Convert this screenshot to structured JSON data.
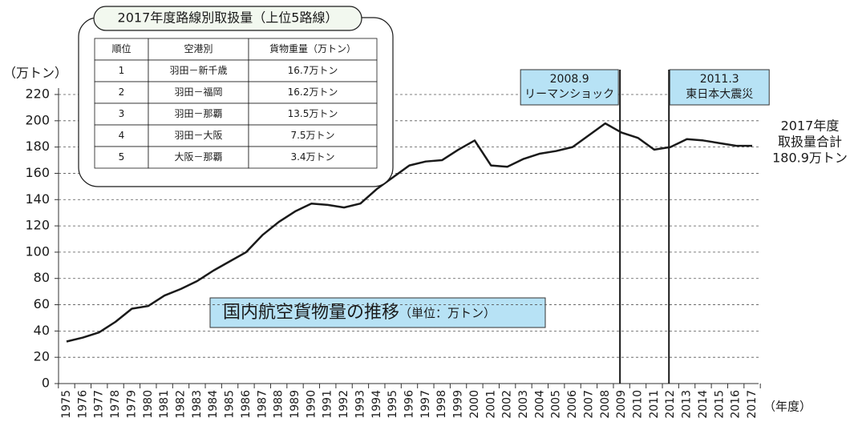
{
  "chart_data": {
    "type": "line",
    "title": "国内航空貨物量の推移",
    "subtitle": "（単位：万トン）",
    "y_label": "（万トン）",
    "x_label": "（年度）",
    "categories": [
      "1975",
      "1976",
      "1977",
      "1978",
      "1979",
      "1980",
      "1981",
      "1982",
      "1983",
      "1984",
      "1985",
      "1986",
      "1987",
      "1988",
      "1989",
      "1990",
      "1991",
      "1992",
      "1993",
      "1994",
      "1995",
      "1996",
      "1997",
      "1998",
      "1999",
      "2000",
      "2001",
      "2002",
      "2003",
      "2004",
      "2005",
      "2006",
      "2007",
      "2008",
      "2009",
      "2010",
      "2011",
      "2012",
      "2013",
      "2014",
      "2015",
      "2016",
      "2017"
    ],
    "series": [
      {
        "color": "#1a1a1a",
        "values": [
          32,
          35,
          39,
          47,
          57,
          59,
          67,
          72,
          78,
          86,
          93,
          100,
          113,
          123,
          131,
          137,
          136,
          134,
          137,
          148,
          157,
          166,
          169,
          170,
          178,
          185,
          166,
          165,
          171,
          175,
          177,
          180,
          189,
          198,
          191,
          187,
          178,
          180,
          186,
          185,
          183,
          181,
          180.9
        ]
      }
    ],
    "ylim": [
      0,
      220
    ],
    "yticks": [
      0,
      20,
      40,
      60,
      80,
      100,
      120,
      140,
      160,
      180,
      200,
      220
    ],
    "grid": true,
    "events": [
      {
        "x": "2009",
        "lines": [
          "2008.9",
          "リーマンショック"
        ]
      },
      {
        "x": "2012",
        "lines": [
          "2011.3",
          "東日本大震災"
        ]
      }
    ],
    "end_note": [
      "2017年度",
      "取扱量合計",
      "180.9万トン"
    ],
    "table": {
      "title": "2017年度路線別取扱量（上位5路線）",
      "header": [
        "順位",
        "空港別",
        "貨物重量（万トン）"
      ],
      "rows": [
        [
          1,
          "羽田－新千歳",
          "16.7万トン"
        ],
        [
          2,
          "羽田－福岡",
          "16.2万トン"
        ],
        [
          3,
          "羽田－那覇",
          "13.5万トン"
        ],
        [
          4,
          "羽田－大阪",
          "7.5万トン"
        ],
        [
          5,
          "大阪－那覇",
          "3.4万トン"
        ]
      ]
    }
  }
}
